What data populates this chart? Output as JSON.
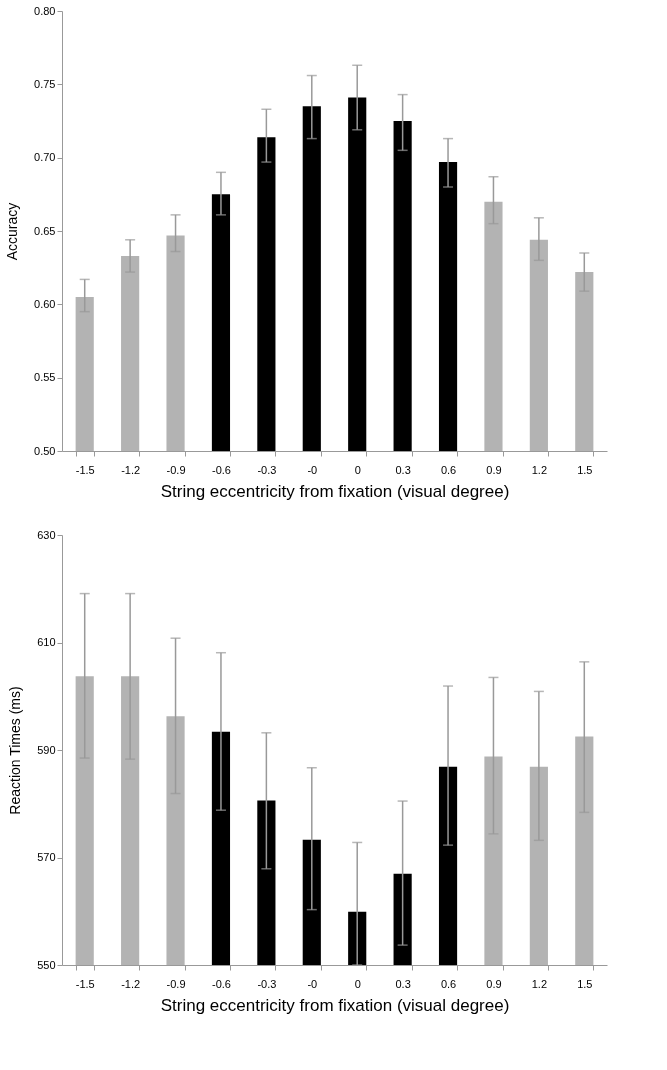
{
  "chart_data": [
    {
      "type": "bar",
      "xlabel": "String eccentricity from fixation (visual degree)",
      "ylabel": "Accuracy",
      "categories": [
        "-1.5",
        "-1.2",
        "-0.9",
        "-0.6",
        "-0.3",
        "-0",
        "0",
        "0.3",
        "0.6",
        "0.9",
        "1.2",
        "1.5"
      ],
      "values": [
        0.605,
        0.633,
        0.647,
        0.675,
        0.714,
        0.735,
        0.741,
        0.725,
        0.697,
        0.67,
        0.644,
        0.622
      ],
      "colors": [
        "#b3b3b3",
        "#b3b3b3",
        "#b3b3b3",
        "#000000",
        "#000000",
        "#000000",
        "#000000",
        "#000000",
        "#000000",
        "#b3b3b3",
        "#b3b3b3",
        "#b3b3b3"
      ],
      "errors": [
        [
          0.595,
          0.617
        ],
        [
          0.622,
          0.644
        ],
        [
          0.636,
          0.661
        ],
        [
          0.661,
          0.69
        ],
        [
          0.697,
          0.733
        ],
        [
          0.713,
          0.756
        ],
        [
          0.719,
          0.763
        ],
        [
          0.705,
          0.743
        ],
        [
          0.68,
          0.713
        ],
        [
          0.655,
          0.687
        ],
        [
          0.63,
          0.659
        ],
        [
          0.609,
          0.635
        ]
      ],
      "ylim": [
        0.5,
        0.8
      ],
      "yticks": [
        {
          "value": 0.5,
          "label": "0.50"
        },
        {
          "value": 0.55,
          "label": "0.55"
        },
        {
          "value": 0.6,
          "label": "0.60"
        },
        {
          "value": 0.65,
          "label": "0.65"
        },
        {
          "value": 0.7,
          "label": "0.70"
        },
        {
          "value": 0.75,
          "label": "0.75"
        },
        {
          "value": 0.8,
          "label": "0.80"
        }
      ],
      "grid": false
    },
    {
      "type": "bar",
      "xlabel": "String eccentricity from fixation (visual degree)",
      "ylabel": "Reaction Times (ms)",
      "categories": [
        "-1.5",
        "-1.2",
        "-0.9",
        "-0.6",
        "-0.3",
        "-0",
        "0",
        "0.3",
        "0.6",
        "0.9",
        "1.2",
        "1.5"
      ],
      "values": [
        603.7,
        603.7,
        596.3,
        593.4,
        580.6,
        573.3,
        559.9,
        567.0,
        586.9,
        588.8,
        586.9,
        592.5
      ],
      "colors": [
        "#b3b3b3",
        "#b3b3b3",
        "#b3b3b3",
        "#000000",
        "#000000",
        "#000000",
        "#000000",
        "#000000",
        "#000000",
        "#b3b3b3",
        "#b3b3b3",
        "#b3b3b3"
      ],
      "errors": [
        [
          588.5,
          619.1
        ],
        [
          588.3,
          619.1
        ],
        [
          581.9,
          610.8
        ],
        [
          578.8,
          608.1
        ],
        [
          567.9,
          593.2
        ],
        [
          560.3,
          586.7
        ],
        [
          550,
          572.8
        ],
        [
          553.7,
          580.5
        ],
        [
          572.3,
          601.9
        ],
        [
          574.4,
          603.5
        ],
        [
          573.2,
          600.9
        ],
        [
          578.4,
          606.4
        ]
      ],
      "ylim": [
        550,
        630
      ],
      "yticks": [
        550,
        570,
        590,
        610,
        630
      ],
      "grid": false
    }
  ]
}
